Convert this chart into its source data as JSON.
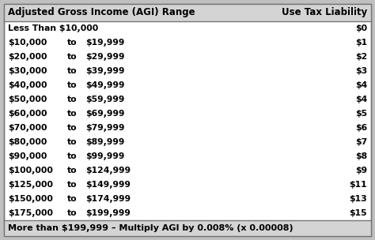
{
  "title_col1": "Adjusted Gross Income (AGI) Range",
  "title_col2": "Use Tax Liability",
  "rows": [
    {
      "range": "Less Than $10,000",
      "to": "",
      "upper": "",
      "tax": "$0"
    },
    {
      "range": "$10,000",
      "to": "to",
      "upper": "$19,999",
      "tax": "$1"
    },
    {
      "range": "$20,000",
      "to": "to",
      "upper": "$29,999",
      "tax": "$2"
    },
    {
      "range": "$30,000",
      "to": "to",
      "upper": "$39,999",
      "tax": "$3"
    },
    {
      "range": "$40,000",
      "to": "to",
      "upper": "$49,999",
      "tax": "$4"
    },
    {
      "range": "$50,000",
      "to": "to",
      "upper": "$59,999",
      "tax": "$4"
    },
    {
      "range": "$60,000",
      "to": "to",
      "upper": "$69,999",
      "tax": "$5"
    },
    {
      "range": "$70,000",
      "to": "to",
      "upper": "$79,999",
      "tax": "$6"
    },
    {
      "range": "$80,000",
      "to": "to",
      "upper": "$89,999",
      "tax": "$7"
    },
    {
      "range": "$90,000",
      "to": "to",
      "upper": "$99,999",
      "tax": "$8"
    },
    {
      "range": "$100,000",
      "to": "to",
      "upper": "$124,999",
      "tax": "$9"
    },
    {
      "range": "$125,000",
      "to": "to",
      "upper": "$149,999",
      "tax": "$11"
    },
    {
      "range": "$150,000",
      "to": "to",
      "upper": "$174,999",
      "tax": "$13"
    },
    {
      "range": "$175,000",
      "to": "to",
      "upper": "$199,999",
      "tax": "$15"
    }
  ],
  "footer": "More than $199,999 – Multiply AGI by 0.008% (x 0.00008)",
  "header_bg": "#d4d4d4",
  "body_bg": "#ffffff",
  "footer_bg": "#d4d4d4",
  "outer_bg": "#c0c0c0",
  "border_color": "#777777",
  "text_color": "#000000",
  "header_fontsize": 8.5,
  "body_fontsize": 7.8,
  "footer_fontsize": 8.0,
  "fig_width": 4.74,
  "fig_height": 3.04,
  "dpi": 100
}
